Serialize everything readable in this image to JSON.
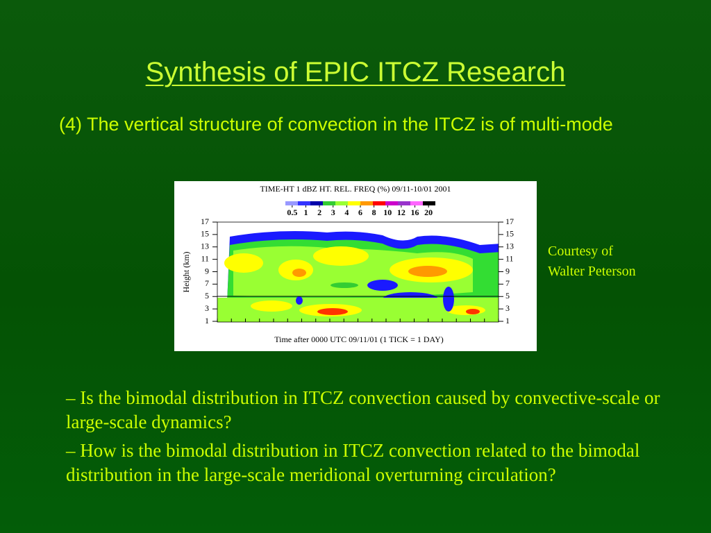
{
  "header": {
    "title": "Synthesis of EPIC ITCZ Research"
  },
  "point": "(4) The vertical structure of convection in the ITCZ is of multi-mode",
  "figure": {
    "title": "TIME-HT 1 dBZ HT. REL. FREQ (%) 09/11-10/01 2001",
    "scale_labels": [
      "0.5",
      "1",
      "2",
      "3",
      "4",
      "6",
      "8",
      "10",
      "12",
      "16",
      "20"
    ],
    "y_ticks": [
      "17",
      "15",
      "13",
      "11",
      "9",
      "7",
      "5",
      "3",
      "1"
    ],
    "y_label": "Height (km)",
    "x_label": "Time after 0000 UTC 09/11/01 (1 TICK = 1 DAY)"
  },
  "courtesy": [
    "Courtesy of",
    "Walter Peterson"
  ],
  "bullets": [
    "– Is the bimodal distribution in ITCZ convection caused by convective-scale or large-scale dynamics?",
    "– How is the bimodal distribution in ITCZ convection related to the bimodal distribution in the large-scale meridional overturning circulation?"
  ]
}
